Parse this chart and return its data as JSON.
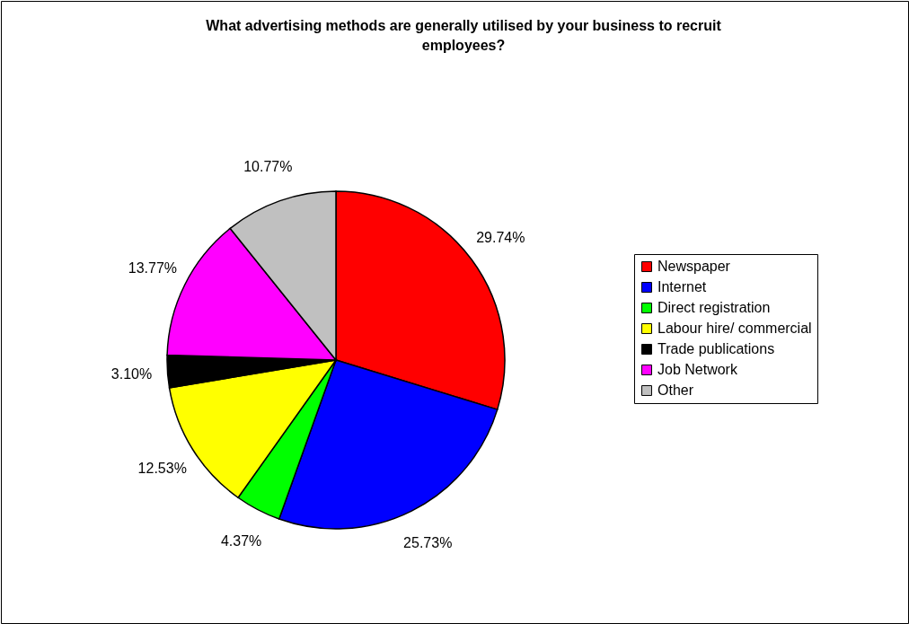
{
  "chart_data": {
    "type": "pie",
    "title": "What advertising methods are generally utilised by your business to recruit employees?",
    "categories": [
      "Newspaper",
      "Internet",
      "Direct registration",
      "Labour hire/ commercial",
      "Trade publications",
      "Job Network",
      "Other"
    ],
    "values": [
      29.74,
      25.73,
      4.37,
      12.53,
      3.1,
      13.77,
      10.77
    ],
    "value_labels": [
      "29.74%",
      "25.73%",
      "4.37%",
      "12.53%",
      "3.10%",
      "13.77%",
      "10.77%"
    ],
    "colors": [
      "#ff0000",
      "#0000ff",
      "#00ff00",
      "#ffff00",
      "#000000",
      "#ff00ff",
      "#c0c0c0"
    ],
    "legend": "right"
  }
}
